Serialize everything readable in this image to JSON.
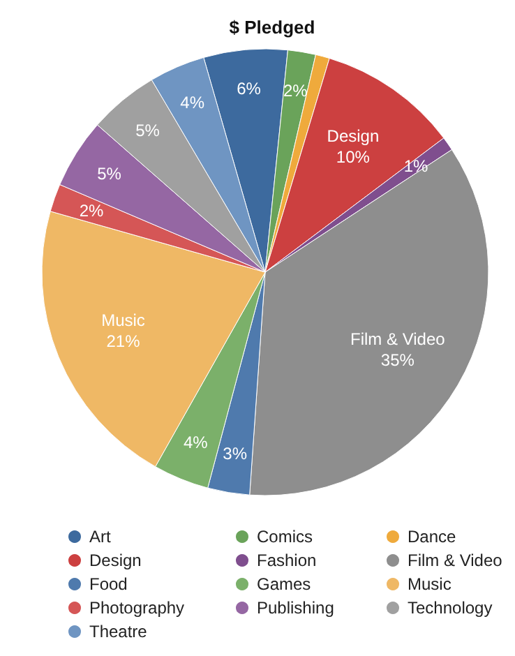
{
  "chart_data": {
    "type": "pie",
    "title": "$ Pledged",
    "categories": [
      "Art",
      "Comics",
      "Dance",
      "Design",
      "Fashion",
      "Film & Video",
      "Food",
      "Games",
      "Music",
      "Photography",
      "Publishing",
      "Technology",
      "Theatre"
    ],
    "values": [
      6,
      2,
      1,
      10,
      1,
      35,
      3,
      4,
      21,
      2,
      5,
      5,
      4
    ],
    "colors": [
      "#3d6a9e",
      "#6aa35a",
      "#efaa3c",
      "#cc4040",
      "#7f4e8e",
      "#8e8e8e",
      "#4f7aad",
      "#7bb06a",
      "#efb865",
      "#d55656",
      "#9567a3",
      "#a0a0a0",
      "#6f95c2"
    ],
    "value_labels": [
      "6%",
      "2%",
      null,
      "Design\n10%",
      "1%",
      "Film & Video\n35%",
      "3%",
      "4%",
      "Music\n21%",
      "2%",
      "5%",
      "5%",
      "4%"
    ],
    "legend": "bottom"
  }
}
